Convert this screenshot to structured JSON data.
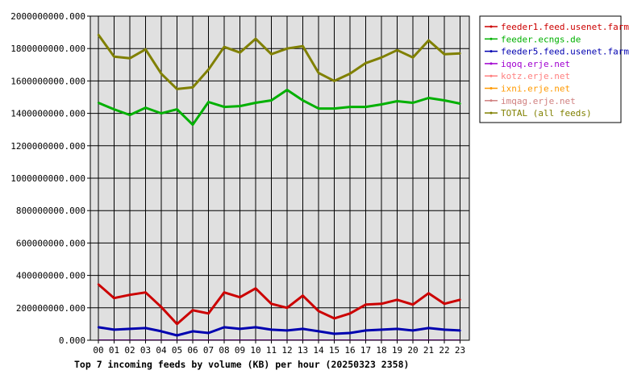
{
  "chart_data": {
    "type": "line",
    "title": "Top 7 incoming feeds by volume (KB) per hour (20250323 2358)",
    "xlabel": "",
    "ylabel": "",
    "categories": [
      "00",
      "01",
      "02",
      "03",
      "04",
      "05",
      "06",
      "07",
      "08",
      "09",
      "10",
      "11",
      "12",
      "13",
      "14",
      "15",
      "16",
      "17",
      "18",
      "19",
      "20",
      "21",
      "22",
      "23"
    ],
    "ylim": [
      0,
      2000000000
    ],
    "yticks": [
      0,
      200000000,
      400000000,
      600000000,
      800000000,
      1000000000,
      1200000000,
      1400000000,
      1600000000,
      1800000000,
      2000000000
    ],
    "ytick_labels": [
      "0.000",
      "200000000.000",
      "400000000.000",
      "600000000.000",
      "800000000.000",
      "1000000000.000",
      "1200000000.000",
      "1400000000.000",
      "1600000000.000",
      "1800000000.000",
      "2000000000.000"
    ],
    "grid": true,
    "legend_position": "right",
    "series": [
      {
        "name": "feeder1.feed.usenet.farm",
        "color": "#cc0000",
        "values": [
          345000000,
          260000000,
          280000000,
          295000000,
          205000000,
          100000000,
          185000000,
          165000000,
          295000000,
          265000000,
          320000000,
          225000000,
          200000000,
          275000000,
          180000000,
          135000000,
          165000000,
          220000000,
          225000000,
          250000000,
          220000000,
          290000000,
          225000000,
          250000000
        ]
      },
      {
        "name": "feeder.ecngs.de",
        "color": "#00b000",
        "values": [
          1465000000,
          1425000000,
          1390000000,
          1435000000,
          1400000000,
          1425000000,
          1330000000,
          1470000000,
          1440000000,
          1445000000,
          1465000000,
          1480000000,
          1545000000,
          1480000000,
          1430000000,
          1430000000,
          1440000000,
          1440000000,
          1455000000,
          1475000000,
          1465000000,
          1495000000,
          1480000000,
          1460000000
        ]
      },
      {
        "name": "feeder5.feed.usenet.farm",
        "color": "#0000b0",
        "values": [
          80000000,
          65000000,
          70000000,
          75000000,
          55000000,
          30000000,
          55000000,
          45000000,
          80000000,
          70000000,
          80000000,
          65000000,
          60000000,
          70000000,
          55000000,
          40000000,
          45000000,
          60000000,
          65000000,
          70000000,
          60000000,
          75000000,
          65000000,
          60000000
        ]
      },
      {
        "name": "iqoq.erje.net",
        "color": "#a000d0",
        "values": [
          1000000,
          1000000,
          1000000,
          1000000,
          1000000,
          1000000,
          1000000,
          1000000,
          1000000,
          1000000,
          1000000,
          1000000,
          1000000,
          1000000,
          1000000,
          1000000,
          1000000,
          1000000,
          1000000,
          1000000,
          1000000,
          1000000,
          1000000,
          1000000
        ]
      },
      {
        "name": "kotz.erje.net",
        "color": "#ff8080",
        "values": [
          1000000,
          1000000,
          1000000,
          1000000,
          1000000,
          1000000,
          1000000,
          1000000,
          1000000,
          1000000,
          1000000,
          1000000,
          1000000,
          1000000,
          1000000,
          1000000,
          1000000,
          1000000,
          1000000,
          1000000,
          1000000,
          1000000,
          1000000,
          1000000
        ]
      },
      {
        "name": "ixni.erje.net",
        "color": "#ff9900",
        "values": [
          1000000,
          1000000,
          1000000,
          1000000,
          1000000,
          1000000,
          1000000,
          1000000,
          1000000,
          1000000,
          1000000,
          1000000,
          1000000,
          1000000,
          1000000,
          1000000,
          1000000,
          1000000,
          1000000,
          1000000,
          1000000,
          1000000,
          1000000,
          1000000
        ]
      },
      {
        "name": "imqag.erje.net",
        "color": "#d08080",
        "values": [
          1000000,
          1000000,
          1000000,
          1000000,
          1000000,
          1000000,
          1000000,
          1000000,
          1000000,
          1000000,
          1000000,
          1000000,
          1000000,
          1000000,
          1000000,
          1000000,
          1000000,
          1000000,
          1000000,
          1000000,
          1000000,
          1000000,
          1000000,
          1000000
        ]
      },
      {
        "name": "TOTAL (all feeds)",
        "color": "#808000",
        "values": [
          1885000000,
          1750000000,
          1740000000,
          1795000000,
          1645000000,
          1550000000,
          1560000000,
          1670000000,
          1810000000,
          1775000000,
          1860000000,
          1765000000,
          1800000000,
          1815000000,
          1650000000,
          1600000000,
          1645000000,
          1710000000,
          1745000000,
          1790000000,
          1745000000,
          1850000000,
          1765000000,
          1770000000
        ]
      }
    ]
  }
}
